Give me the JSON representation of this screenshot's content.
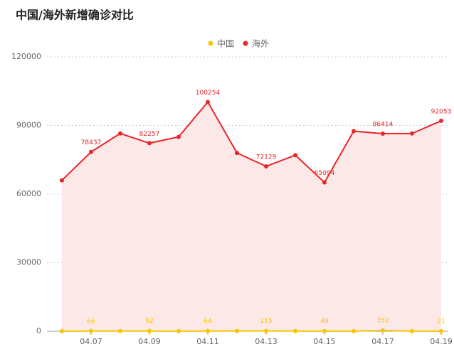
{
  "chart_data": {
    "type": "line",
    "title": "中国/海外新增确诊对比",
    "categories": [
      null,
      "04.07",
      null,
      "04.09",
      null,
      "04.11",
      null,
      "04.13",
      null,
      "04.15",
      null,
      "04.17",
      null,
      "04.19"
    ],
    "series": [
      {
        "name": "中国",
        "color": "#f7c600",
        "values": [
          30,
          66,
          62,
          92,
          46,
          64,
          108,
          115,
          89,
          49,
          46,
          352,
          27,
          21
        ]
      },
      {
        "name": "海外",
        "color": "#e8262a",
        "values": [
          66000,
          78437,
          86500,
          82257,
          85000,
          100254,
          78000,
          72129,
          77000,
          65094,
          87500,
          86414,
          86500,
          92053
        ]
      }
    ],
    "ylim": [
      0,
      120000
    ],
    "yticks": [
      0,
      30000,
      60000,
      90000,
      120000
    ],
    "grid": true,
    "legend": "top"
  }
}
